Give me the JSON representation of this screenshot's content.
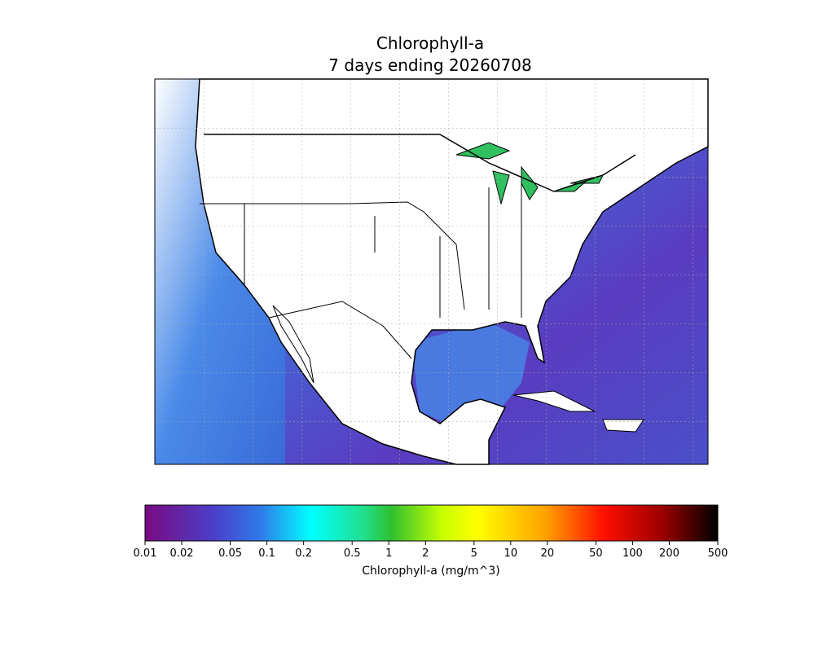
{
  "map": {
    "title": "Chlorophyll-a",
    "subtitle": "7 days ending 20260708",
    "colorbar": {
      "label": "Chlorophyll-a (mg/m^3)",
      "scale": "log",
      "lim": [
        0.01,
        500
      ],
      "ticks": [
        0.01,
        0.02,
        0.05,
        0.1,
        0.2,
        0.5,
        1,
        2,
        5,
        10,
        20,
        50,
        100,
        200,
        500
      ]
    }
  }
}
